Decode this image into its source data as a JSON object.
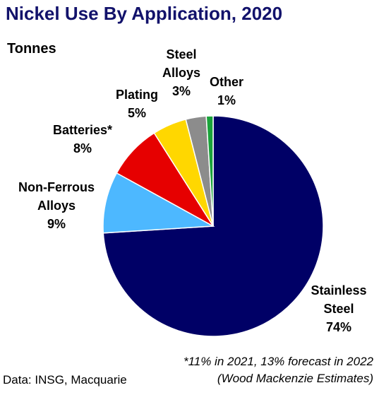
{
  "title": "Nickel Use By Application, 2020",
  "subtitle": "Tonnes",
  "footnote": {
    "line1": "*11% in 2021, 13% forecast in 2022",
    "line2": "(Wood Mackenzie Estimates)"
  },
  "source": "Data: INSG, Macquarie",
  "chart_data": {
    "type": "pie",
    "title": "Nickel Use By Application, 2020",
    "unit": "Tonnes",
    "slices": [
      {
        "label_lines": [
          "Stainless",
          "Steel"
        ],
        "value": 74,
        "value_label": "74%",
        "color": "#000066"
      },
      {
        "label_lines": [
          "Non-Ferrous",
          "Alloys"
        ],
        "value": 9,
        "value_label": "9%",
        "color": "#4db8ff"
      },
      {
        "label_lines": [
          "Batteries*"
        ],
        "value": 8,
        "value_label": "8%",
        "color": "#e60000"
      },
      {
        "label_lines": [
          "Plating"
        ],
        "value": 5,
        "value_label": "5%",
        "color": "#ffd700"
      },
      {
        "label_lines": [
          "Steel",
          "Alloys"
        ],
        "value": 3,
        "value_label": "3%",
        "color": "#8c8c8c"
      },
      {
        "label_lines": [
          "Other"
        ],
        "value": 1,
        "value_label": "1%",
        "color": "#1aa33a"
      }
    ]
  }
}
